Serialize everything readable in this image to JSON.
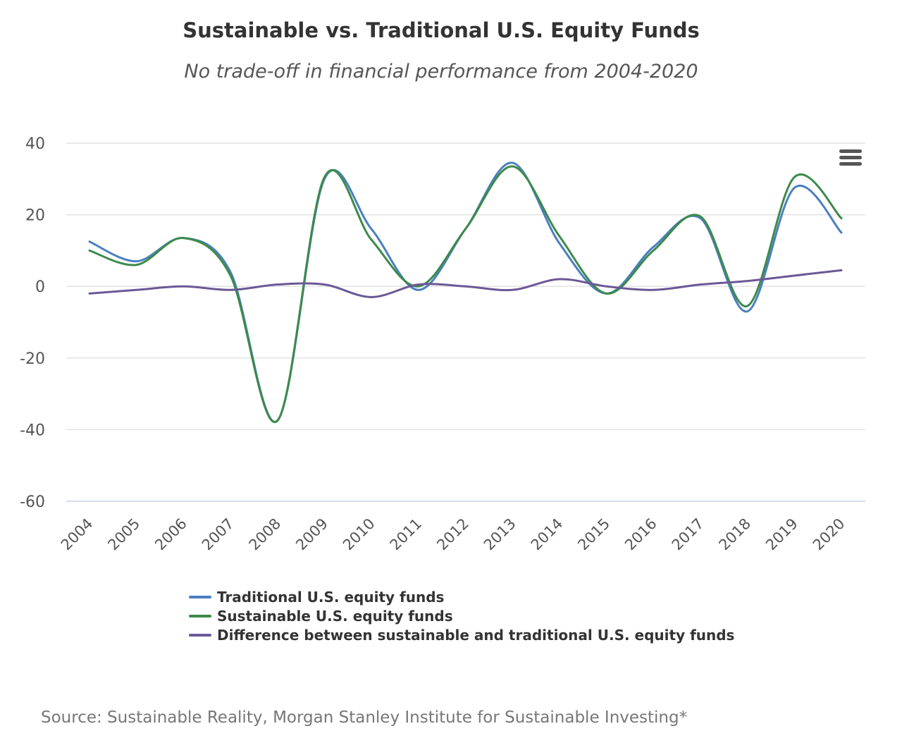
{
  "chart_data": {
    "type": "line",
    "title": "Sustainable vs. Traditional U.S. Equity Funds",
    "subtitle": "No trade-off in financial performance from 2004-2020",
    "xlabel": "",
    "ylabel": "",
    "ylim": [
      -60,
      40
    ],
    "yticks": [
      "40",
      "20",
      "0",
      "-20",
      "-40",
      "-60"
    ],
    "grid": true,
    "legend_position": "bottom-left",
    "x": [
      "2004",
      "2005",
      "2006",
      "2007",
      "2008",
      "2009",
      "2010",
      "2011",
      "2012",
      "2013",
      "2014",
      "2015",
      "2016",
      "2017",
      "2018",
      "2019",
      "2020"
    ],
    "series": [
      {
        "name": "Traditional U.S. equity funds",
        "color": "#4a7fc1",
        "values": [
          12.5,
          7,
          13.5,
          4,
          -37.5,
          30,
          16,
          -1,
          16,
          34.5,
          12,
          -2,
          11,
          19,
          -7,
          27.5,
          15
        ]
      },
      {
        "name": "Sustainable U.S. equity funds",
        "color": "#3d8a4a",
        "values": [
          10,
          6,
          13.5,
          3,
          -37.5,
          30.5,
          13,
          0,
          16,
          33.5,
          14,
          -2,
          10,
          19.5,
          -5.5,
          30.5,
          19
        ]
      },
      {
        "name": "Difference between sustainable and traditional U.S. equity funds",
        "color": "#6c5896",
        "values": [
          -2,
          -1,
          0,
          -1,
          0.5,
          0.5,
          -3,
          0.5,
          0,
          -1,
          2,
          0,
          -1,
          0.5,
          1.5,
          3,
          4.5
        ]
      }
    ]
  },
  "source": {
    "text": "Source: Sustainable Reality, Morgan Stanley Institute for Sustainable Investing*"
  },
  "toolbar": {
    "menu_icon": "hamburger-menu-icon"
  }
}
